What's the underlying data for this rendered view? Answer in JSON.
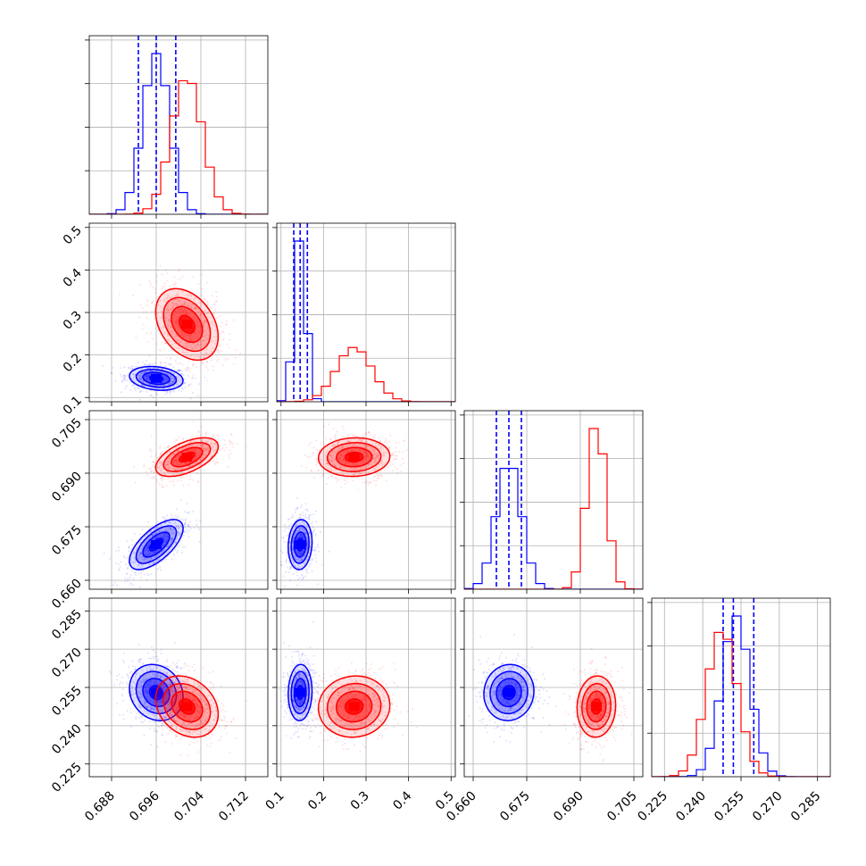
{
  "chart_data": {
    "type": "corner",
    "parameters": [
      "",
      "",
      "",
      ""
    ],
    "ranges": [
      [
        0.684,
        0.716
      ],
      [
        0.09,
        0.51
      ],
      [
        0.6575,
        0.7075
      ],
      [
        0.22,
        0.29
      ]
    ],
    "ticks": [
      [
        0.688,
        0.696,
        0.704,
        0.712
      ],
      [
        0.1,
        0.2,
        0.3,
        0.4,
        0.5
      ],
      [
        0.66,
        0.675,
        0.69,
        0.705
      ],
      [
        0.225,
        0.24,
        0.255,
        0.27,
        0.285
      ]
    ],
    "tick_labels": [
      [
        "0.688",
        "0.696",
        "0.704",
        "0.712"
      ],
      [
        "0.1",
        "0.2",
        "0.3",
        "0.4",
        "0.5"
      ],
      [
        "0.660",
        "0.675",
        "0.690",
        "0.705"
      ],
      [
        "0.225",
        "0.240",
        "0.255",
        "0.270",
        "0.285"
      ]
    ],
    "grid": true,
    "series": [
      {
        "color": "#0000ff",
        "means": [
          0.696,
          0.145,
          0.67,
          0.253
        ],
        "sigmas": [
          0.0024,
          0.014,
          0.0035,
          0.0055
        ],
        "correlations": {
          "0-1": -0.2,
          "0-2": 0.65,
          "0-3": -0.15,
          "1-2": 0.1,
          "1-3": 0.05,
          "2-3": 0.05
        },
        "quantiles": [
          [
            0.6928,
            0.696,
            0.6995
          ],
          [
            0.13,
            0.145,
            0.162
          ],
          [
            0.6665,
            0.67,
            0.6735
          ],
          [
            0.248,
            0.252,
            0.26
          ]
        ]
      },
      {
        "color": "#ff0000",
        "means": [
          0.7015,
          0.272,
          0.6945,
          0.2475
        ],
        "sigmas": [
          0.0028,
          0.042,
          0.0027,
          0.006
        ],
        "correlations": {
          "0-1": -0.35,
          "0-2": 0.55,
          "0-3": -0.25,
          "1-2": 0.05,
          "1-3": 0.05,
          "2-3": 0.05
        },
        "quantiles": null
      }
    ]
  }
}
